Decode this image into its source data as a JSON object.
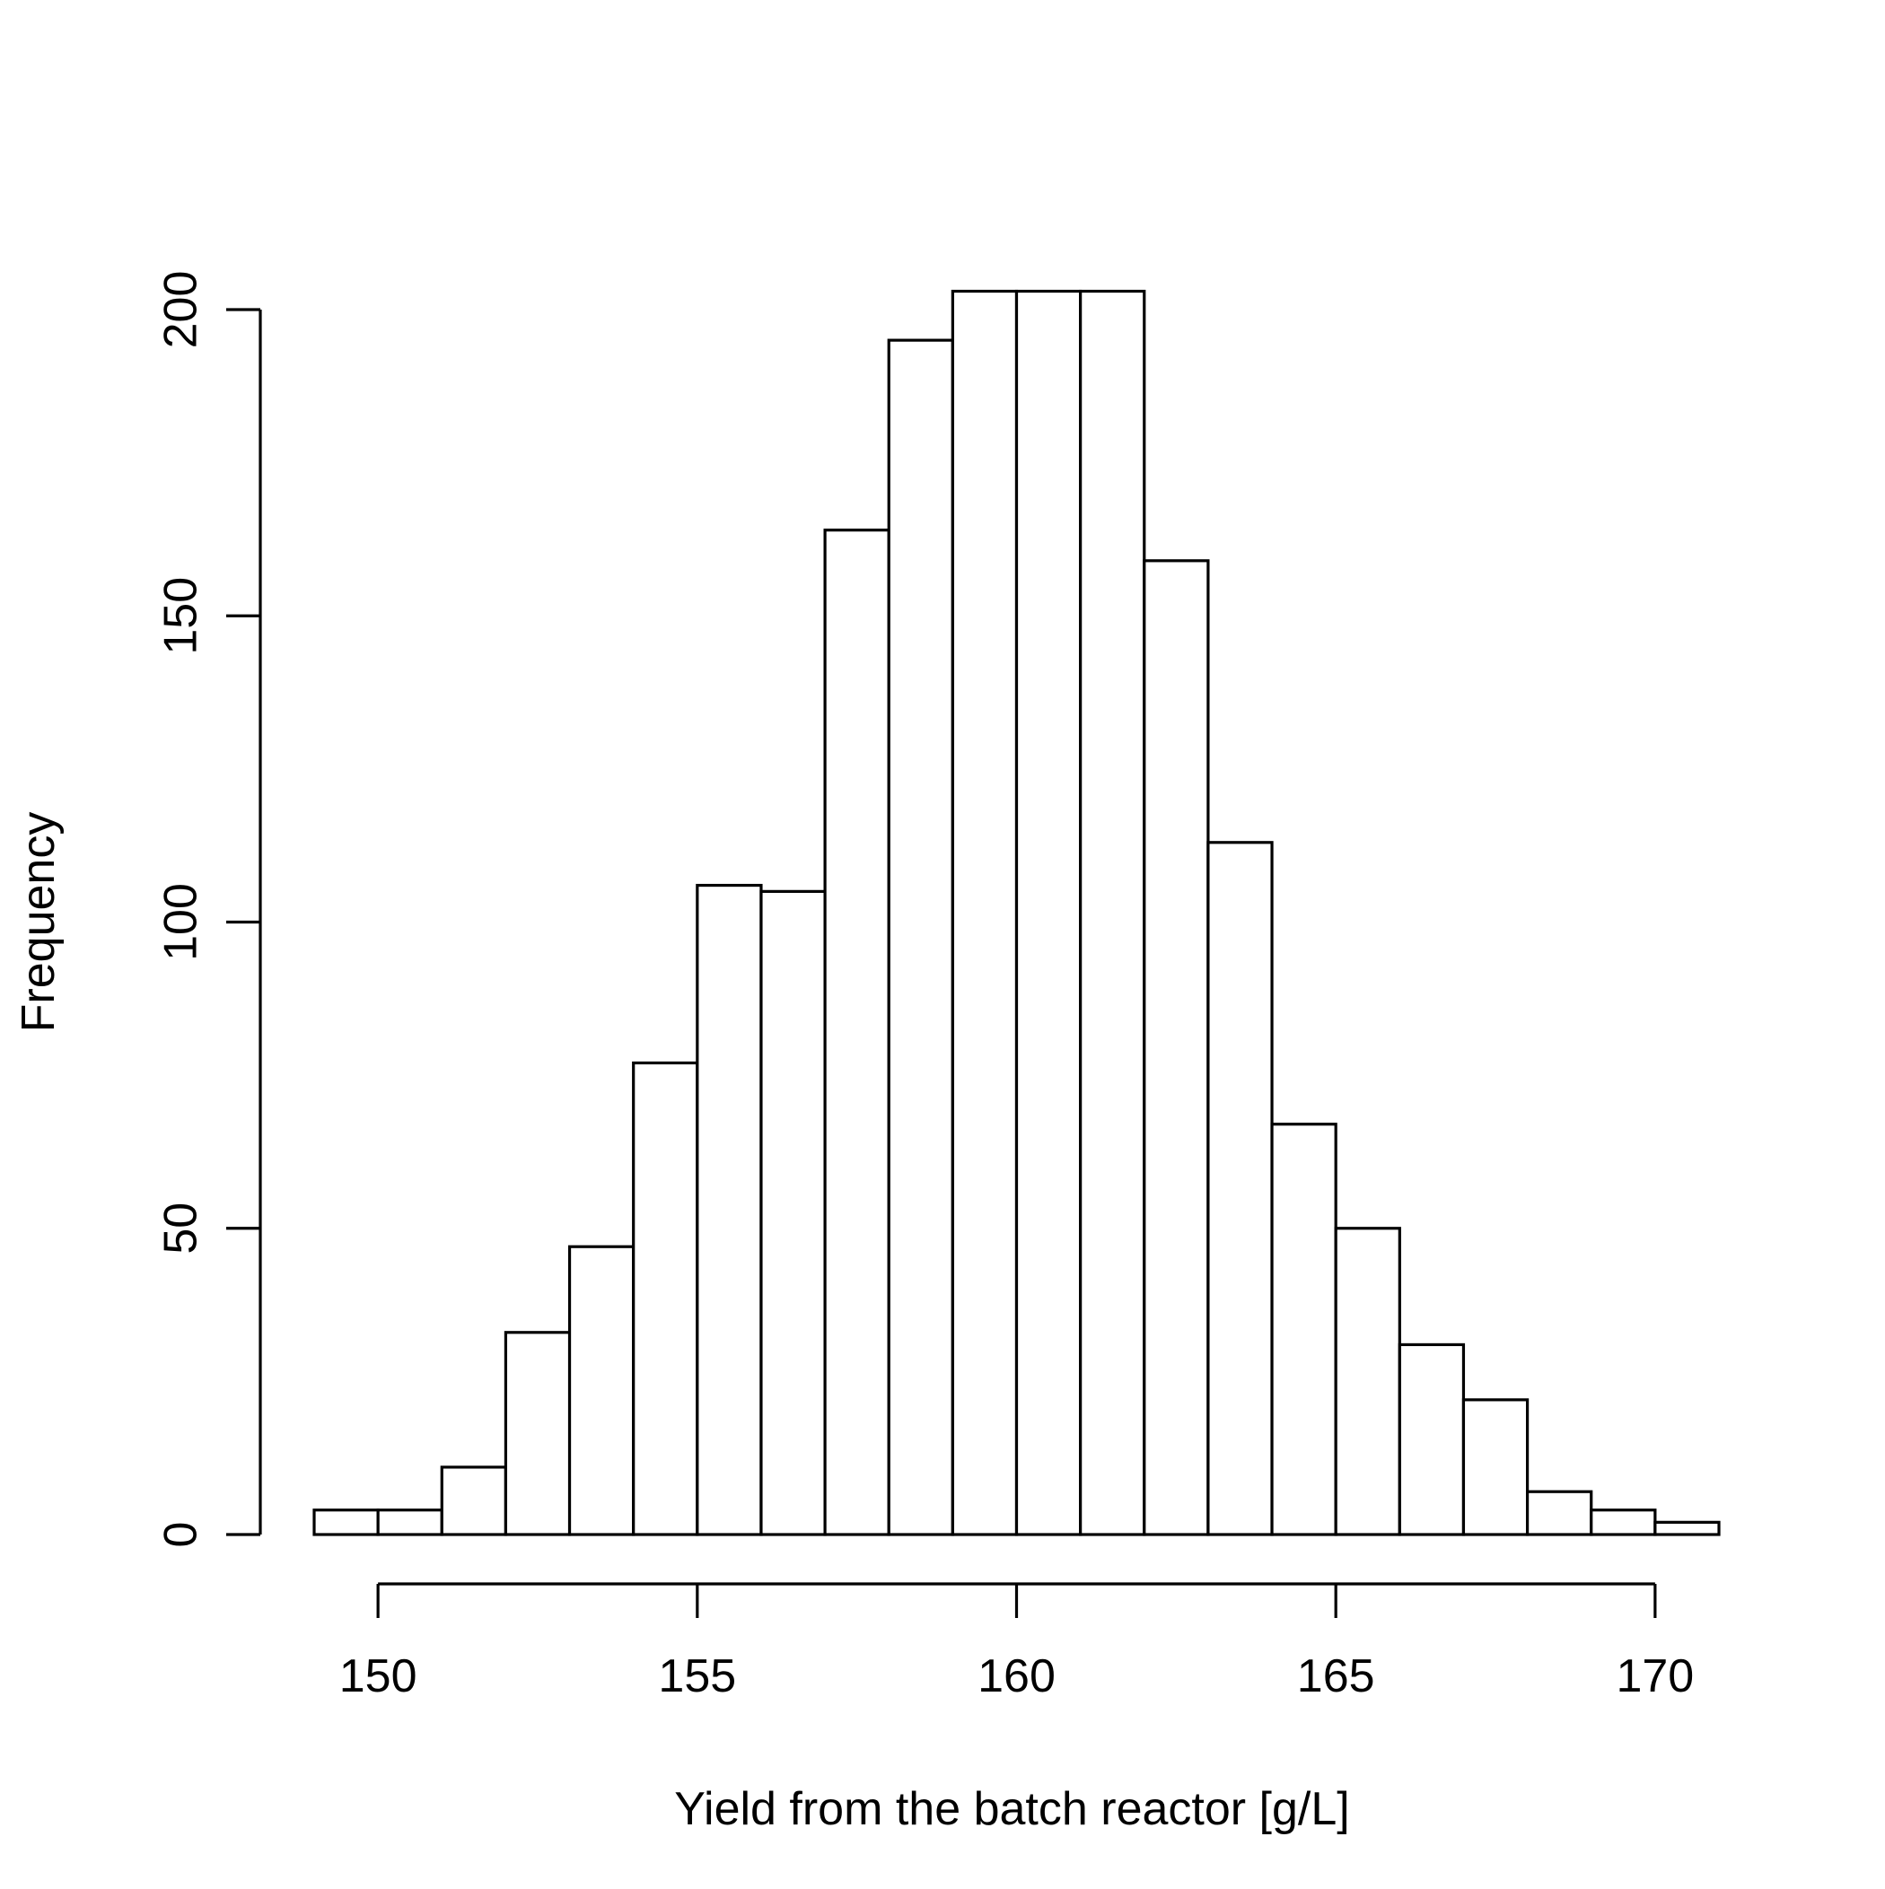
{
  "chart_data": {
    "type": "bar",
    "subtype": "histogram",
    "title": "",
    "xlabel": "Yield from the batch reactor [g/L]",
    "ylabel": "Frequency",
    "xlim": [
      149,
      171
    ],
    "ylim": [
      0,
      200
    ],
    "x_ticks": [
      150,
      155,
      160,
      165,
      170
    ],
    "y_ticks": [
      0,
      50,
      100,
      150,
      200
    ],
    "grid": false,
    "legend": "none",
    "bins": [
      {
        "start": 149,
        "end": 150,
        "value": 4
      },
      {
        "start": 150,
        "end": 151,
        "value": 4
      },
      {
        "start": 151,
        "end": 152,
        "value": 11
      },
      {
        "start": 152,
        "end": 153,
        "value": 33
      },
      {
        "start": 153,
        "end": 154,
        "value": 47
      },
      {
        "start": 154,
        "end": 155,
        "value": 77
      },
      {
        "start": 155,
        "end": 156,
        "value": 106
      },
      {
        "start": 156,
        "end": 157,
        "value": 105
      },
      {
        "start": 157,
        "end": 158,
        "value": 164
      },
      {
        "start": 158,
        "end": 159,
        "value": 195
      },
      {
        "start": 159,
        "end": 160,
        "value": 203
      },
      {
        "start": 160,
        "end": 161,
        "value": 203
      },
      {
        "start": 161,
        "end": 162,
        "value": 203
      },
      {
        "start": 162,
        "end": 163,
        "value": 159
      },
      {
        "start": 163,
        "end": 164,
        "value": 113
      },
      {
        "start": 164,
        "end": 165,
        "value": 67
      },
      {
        "start": 165,
        "end": 166,
        "value": 50
      },
      {
        "start": 166,
        "end": 167,
        "value": 31
      },
      {
        "start": 167,
        "end": 168,
        "value": 22
      },
      {
        "start": 168,
        "end": 169,
        "value": 7
      },
      {
        "start": 169,
        "end": 170,
        "value": 4
      },
      {
        "start": 170,
        "end": 171,
        "value": 2
      }
    ],
    "colors": {
      "bar_fill": "#ffffff",
      "bar_stroke": "#000000",
      "axis": "#000000"
    }
  }
}
